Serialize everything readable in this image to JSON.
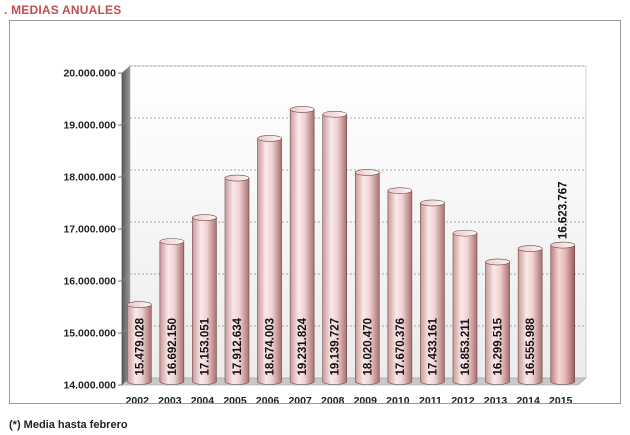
{
  "header": {
    "title": ". MEDIAS ANUALES"
  },
  "footnote": "(*) Media hasta febrero",
  "colors": {
    "title": "#c0504d",
    "bar_light": "#f6dede",
    "bar_dark": "#b07a7a",
    "wall": "#f2f2f2",
    "floor": "#cfcfcf"
  },
  "chart_data": {
    "type": "bar",
    "title": "",
    "xlabel": "",
    "ylabel": "",
    "ylim": [
      14000000,
      20000000
    ],
    "y_ticks": [
      14000000,
      15000000,
      16000000,
      17000000,
      18000000,
      19000000,
      20000000
    ],
    "y_tick_labels": [
      "14.000.000",
      "15.000.000",
      "16.000.000",
      "17.000.000",
      "18.000.000",
      "19.000.000",
      "20.000.000"
    ],
    "grid": true,
    "categories": [
      "2002",
      "2003",
      "2004",
      "2005",
      "2006",
      "2007",
      "2008",
      "2009",
      "2010",
      "2011",
      "2012",
      "2013",
      "2014",
      "2015"
    ],
    "values": [
      15479028,
      16692150,
      17153051,
      17912634,
      18674003,
      19231824,
      19139727,
      18020470,
      17670376,
      17433161,
      16853211,
      16299515,
      16555988,
      16623767
    ],
    "value_labels": [
      "15.479.028",
      "16.692.150",
      "17.153.051",
      "17.912.634",
      "18.674.003",
      "19.231.824",
      "19.139.727",
      "18.020.470",
      "17.670.376",
      "17.433.161",
      "16.853.211",
      "16.299.515",
      "16.555.988",
      "16.623.767"
    ],
    "highlighted_category": "2015"
  }
}
